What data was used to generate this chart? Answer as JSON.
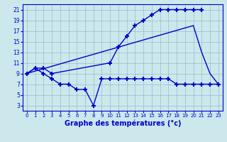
{
  "bg_color": "#cce8ec",
  "line_color": "#0000cc",
  "grid_color": "#99bbcc",
  "xlabel": "Graphe des températures (°c)",
  "xlim": [
    -0.5,
    23.5
  ],
  "ylim": [
    2,
    22
  ],
  "yticks": [
    3,
    5,
    7,
    9,
    11,
    13,
    15,
    17,
    19,
    21
  ],
  "xticks": [
    0,
    1,
    2,
    3,
    4,
    5,
    6,
    7,
    8,
    9,
    10,
    11,
    12,
    13,
    14,
    15,
    16,
    17,
    18,
    19,
    20,
    21,
    22,
    23
  ],
  "series": [
    {
      "x": [
        0,
        1,
        2,
        3,
        10,
        11,
        12,
        13,
        14,
        15,
        16,
        17,
        18,
        19,
        20,
        21
      ],
      "y": [
        9,
        10,
        10,
        9,
        11,
        14,
        16,
        18,
        19,
        20,
        21,
        21,
        21,
        21,
        21,
        21
      ],
      "marker": "+",
      "ms": 5,
      "lw": 1.0
    },
    {
      "x": [
        0,
        20,
        21,
        22,
        23
      ],
      "y": [
        9,
        18,
        13,
        9,
        7
      ],
      "marker": null,
      "ms": 3,
      "lw": 1.0
    },
    {
      "x": [
        0,
        1,
        2,
        3,
        4,
        5,
        6,
        7,
        8,
        9,
        10,
        11,
        12,
        13,
        14,
        15,
        16,
        17,
        18,
        19,
        20,
        21,
        22,
        23
      ],
      "y": [
        9,
        10,
        9,
        8,
        7,
        7,
        6,
        6,
        3,
        8,
        8,
        8,
        8,
        8,
        8,
        8,
        8,
        8,
        7,
        7,
        7,
        7,
        7,
        7
      ],
      "marker": "+",
      "ms": 5,
      "lw": 1.0
    }
  ]
}
